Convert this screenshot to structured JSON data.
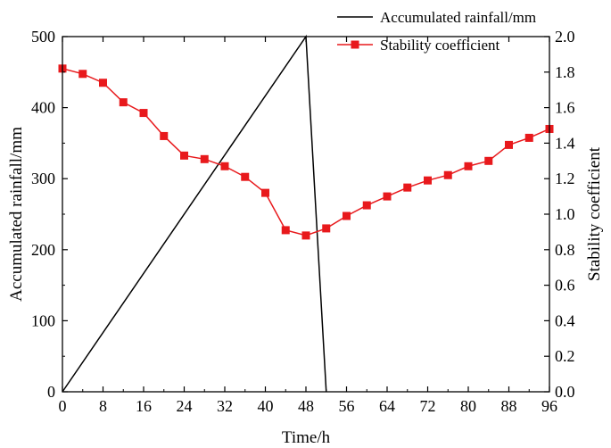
{
  "chart_data": {
    "type": "line",
    "x": [
      0,
      4,
      8,
      12,
      16,
      20,
      24,
      28,
      32,
      36,
      40,
      44,
      48,
      52,
      56,
      60,
      64,
      68,
      72,
      76,
      80,
      84,
      88,
      92,
      96
    ],
    "series": [
      {
        "name": "Accumulated rainfall/mm",
        "axis": "left",
        "color": "#000000",
        "marker": "none",
        "points": [
          [
            0,
            0
          ],
          [
            48,
            500
          ],
          [
            52,
            0
          ]
        ]
      },
      {
        "name": "Stability coefficient",
        "axis": "right",
        "color": "#e8191c",
        "marker": "square",
        "values": [
          1.82,
          1.79,
          1.74,
          1.63,
          1.57,
          1.44,
          1.33,
          1.31,
          1.27,
          1.21,
          1.12,
          0.91,
          0.88,
          0.92,
          0.99,
          1.05,
          1.1,
          1.15,
          1.19,
          1.22,
          1.27,
          1.3,
          1.39,
          1.43,
          1.48
        ]
      }
    ],
    "xlabel": "Time/h",
    "ylabel_left": "Accumulated rainfall/mm",
    "ylabel_right": "Stability coefficient",
    "xlim": [
      0,
      96
    ],
    "ylim_left": [
      0,
      500
    ],
    "ylim_right": [
      0.0,
      2.0
    ],
    "x_ticks": [
      "0",
      "8",
      "16",
      "24",
      "32",
      "40",
      "48",
      "56",
      "64",
      "72",
      "80",
      "88",
      "96"
    ],
    "y_left_ticks": [
      "0",
      "100",
      "200",
      "300",
      "400",
      "500"
    ],
    "y_right_ticks": [
      "0.0",
      "0.2",
      "0.4",
      "0.6",
      "0.8",
      "1.0",
      "1.2",
      "1.4",
      "1.6",
      "1.8",
      "2.0"
    ],
    "legend_position": "top-right",
    "grid": false
  }
}
